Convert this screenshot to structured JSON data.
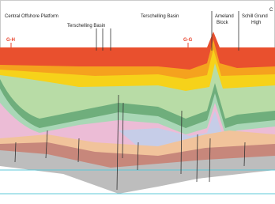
{
  "labels": [
    {
      "lines": [
        "Central Offshore Platform"
      ]
    },
    {
      "lines": [
        "Terschelling Basin"
      ]
    },
    {
      "lines": [
        "Terschelling Basin"
      ]
    },
    {
      "lines": [
        "Ameland",
        "Block"
      ]
    },
    {
      "lines": [
        "Schill Grund",
        "High"
      ]
    },
    {
      "lines": [
        "C"
      ]
    }
  ],
  "section_markers": [
    "G-H",
    "G-G"
  ]
}
